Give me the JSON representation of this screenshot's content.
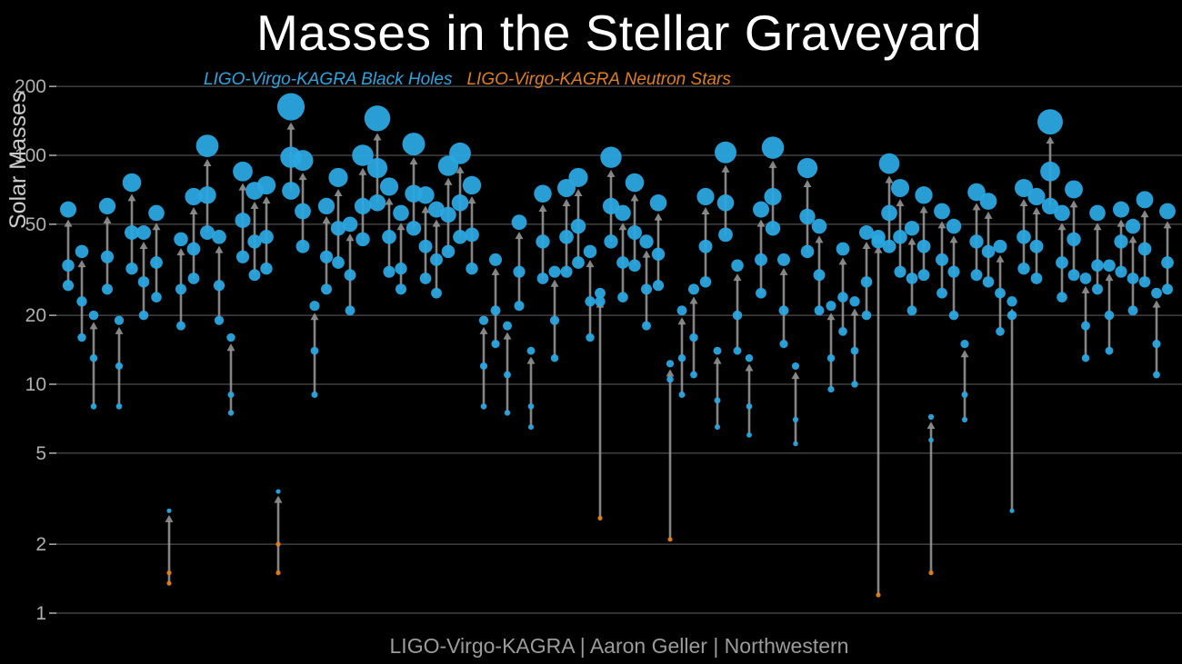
{
  "title": "Masses in the Stellar Graveyard",
  "legend": {
    "black_holes": "LIGO-Virgo-KAGRA Black Holes",
    "neutron_stars": "LIGO-Virgo-KAGRA Neutron Stars"
  },
  "y_axis": {
    "label": "Solar Masses",
    "scale": "log",
    "ticks": [
      1,
      2,
      5,
      10,
      20,
      50,
      100,
      200
    ],
    "range": [
      1,
      250
    ]
  },
  "footer": "LIGO-Virgo-KAGRA | Aaron Geller | Northwestern",
  "colors": {
    "background": "#000000",
    "black_hole": "#2AA7E0",
    "neutron_star": "#E07F1A",
    "arrow": "#9C9C9C",
    "grid": "#4D4D4D",
    "tick_text": "#B0B0B0",
    "title_text": "#FFFFFF",
    "footer_text": "#9C9C9C"
  },
  "chart_data": {
    "type": "scatter",
    "title": "Masses in the Stellar Graveyard",
    "ylabel": "Solar Masses",
    "yscale": "log",
    "yticks": [
      1,
      2,
      5,
      10,
      20,
      50,
      100,
      200
    ],
    "ylim": [
      1,
      250
    ],
    "grid": "horizontal",
    "legend_position": "top-left",
    "series_legend": [
      "LIGO-Virgo-KAGRA Black Holes",
      "LIGO-Virgo-KAGRA Neutron Stars"
    ],
    "events_format": [
      "x_px",
      "m1_solar",
      "m2_solar",
      "m_final_solar",
      "kind"
    ],
    "events": [
      [
        75,
        33,
        27,
        58,
        "BBH"
      ],
      [
        90,
        23,
        16,
        38,
        "BBH"
      ],
      [
        103,
        13,
        8,
        20,
        "BBH"
      ],
      [
        118,
        36,
        26,
        60,
        "BBH"
      ],
      [
        131,
        12,
        8,
        19,
        "BBH"
      ],
      [
        145,
        46,
        32,
        76,
        "BBH"
      ],
      [
        158,
        28,
        20,
        46,
        "BBH"
      ],
      [
        172,
        34,
        24,
        56,
        "BBH"
      ],
      [
        186,
        1.5,
        1.35,
        2.8,
        "BNS"
      ],
      [
        199,
        26,
        18,
        43,
        "BBH"
      ],
      [
        213,
        39,
        29,
        66,
        "BBH"
      ],
      [
        228,
        67,
        46,
        110,
        "BBH"
      ],
      [
        241,
        27,
        19,
        44,
        "BBH"
      ],
      [
        254,
        9,
        7.5,
        16,
        "BBH"
      ],
      [
        267,
        52,
        36,
        85,
        "BBH"
      ],
      [
        280,
        42,
        30,
        70,
        "BBH"
      ],
      [
        293,
        44,
        32,
        74,
        "BBH"
      ],
      [
        306,
        2.0,
        1.5,
        3.4,
        "BNS"
      ],
      [
        320,
        98,
        70,
        163,
        "BBH"
      ],
      [
        333,
        57,
        40,
        95,
        "BBH"
      ],
      [
        346,
        14,
        9,
        22,
        "BBH"
      ],
      [
        359,
        36,
        26,
        60,
        "BBH"
      ],
      [
        372,
        48,
        34,
        80,
        "BBH"
      ],
      [
        385,
        30,
        21,
        50,
        "BBH"
      ],
      [
        399,
        60,
        43,
        100,
        "BBH"
      ],
      [
        415,
        88,
        62,
        145,
        "BBH"
      ],
      [
        428,
        44,
        31,
        73,
        "BBH"
      ],
      [
        441,
        32,
        26,
        56,
        "BBH"
      ],
      [
        455,
        68,
        48,
        112,
        "BBH"
      ],
      [
        468,
        40,
        29,
        67,
        "BBH"
      ],
      [
        480,
        35,
        25,
        58,
        "BBH"
      ],
      [
        493,
        55,
        38,
        90,
        "BBH"
      ],
      [
        506,
        62,
        44,
        102,
        "BBH"
      ],
      [
        519,
        45,
        32,
        74,
        "BBH"
      ],
      [
        532,
        12,
        8,
        19,
        "BBH"
      ],
      [
        545,
        21,
        15,
        35,
        "BBH"
      ],
      [
        558,
        11,
        7.5,
        18,
        "BBH"
      ],
      [
        571,
        31,
        22,
        51,
        "BBH"
      ],
      [
        584,
        8,
        6.5,
        14,
        "BBH"
      ],
      [
        597,
        42,
        29,
        68,
        "BBH"
      ],
      [
        610,
        19,
        13,
        31,
        "BBH"
      ],
      [
        623,
        44,
        31,
        72,
        "BBH"
      ],
      [
        636,
        49,
        34,
        80,
        "BBH"
      ],
      [
        649,
        23,
        16,
        38,
        "BBH"
      ],
      [
        660,
        23,
        2.6,
        25,
        "NSBH"
      ],
      [
        672,
        60,
        42,
        98,
        "BBH"
      ],
      [
        685,
        34,
        24,
        56,
        "BBH"
      ],
      [
        698,
        46,
        33,
        76,
        "BBH"
      ],
      [
        711,
        26,
        18,
        42,
        "BBH"
      ],
      [
        724,
        37,
        27,
        62,
        "BBH"
      ],
      [
        737,
        10.5,
        2.1,
        12.3,
        "NSBH"
      ],
      [
        750,
        13,
        9,
        21,
        "BBH"
      ],
      [
        763,
        16,
        11,
        26,
        "BBH"
      ],
      [
        776,
        40,
        28,
        66,
        "BBH"
      ],
      [
        789,
        8.5,
        6.5,
        14,
        "BBH"
      ],
      [
        798,
        62,
        45,
        103,
        "BBH"
      ],
      [
        811,
        20,
        14,
        33,
        "BBH"
      ],
      [
        824,
        8,
        6,
        13,
        "BBH"
      ],
      [
        837,
        35,
        25,
        58,
        "BBH"
      ],
      [
        850,
        66,
        48,
        108,
        "BBH"
      ],
      [
        862,
        21,
        15,
        35,
        "BBH"
      ],
      [
        875,
        7,
        5.5,
        12,
        "BBH"
      ],
      [
        888,
        54,
        38,
        88,
        "BBH"
      ],
      [
        901,
        30,
        21,
        49,
        "BBH"
      ],
      [
        914,
        13,
        9.5,
        22,
        "BBH"
      ],
      [
        927,
        24,
        17,
        39,
        "BBH"
      ],
      [
        940,
        14,
        10,
        23,
        "BBH"
      ],
      [
        953,
        28,
        20,
        46,
        "BBH"
      ],
      [
        966,
        42,
        1.2,
        44,
        "NSBH"
      ],
      [
        978,
        56,
        40,
        92,
        "BBH"
      ],
      [
        990,
        44,
        31,
        72,
        "BBH"
      ],
      [
        1003,
        29,
        21,
        48,
        "BBH"
      ],
      [
        1016,
        40,
        30,
        67,
        "BBH"
      ],
      [
        1024,
        5.7,
        1.5,
        7.2,
        "NSBH"
      ],
      [
        1036,
        35,
        25,
        57,
        "BBH"
      ],
      [
        1049,
        31,
        20,
        49,
        "BBH"
      ],
      [
        1061,
        9,
        7,
        15,
        "BBH"
      ],
      [
        1074,
        42,
        30,
        69,
        "BBH"
      ],
      [
        1087,
        38,
        28,
        63,
        "BBH"
      ],
      [
        1100,
        25,
        17,
        40,
        "BBH"
      ],
      [
        1113,
        20,
        2.8,
        23,
        "BBH"
      ],
      [
        1126,
        44,
        32,
        72,
        "BBH"
      ],
      [
        1140,
        40,
        29,
        66,
        "BBH"
      ],
      [
        1155,
        85,
        60,
        140,
        "BBH"
      ],
      [
        1168,
        34,
        24,
        56,
        "BBH"
      ],
      [
        1181,
        43,
        30,
        71,
        "BBH"
      ],
      [
        1194,
        18,
        13,
        29,
        "BBH"
      ],
      [
        1207,
        33,
        26,
        56,
        "BBH"
      ],
      [
        1220,
        20,
        14,
        33,
        "BBH"
      ],
      [
        1233,
        42,
        31,
        58,
        "BBH"
      ],
      [
        1246,
        29,
        21,
        49,
        "BBH"
      ],
      [
        1259,
        39,
        28,
        64,
        "BBH"
      ],
      [
        1272,
        15,
        11,
        25,
        "BBH"
      ],
      [
        1284,
        34,
        26,
        57,
        "BBH"
      ]
    ]
  }
}
